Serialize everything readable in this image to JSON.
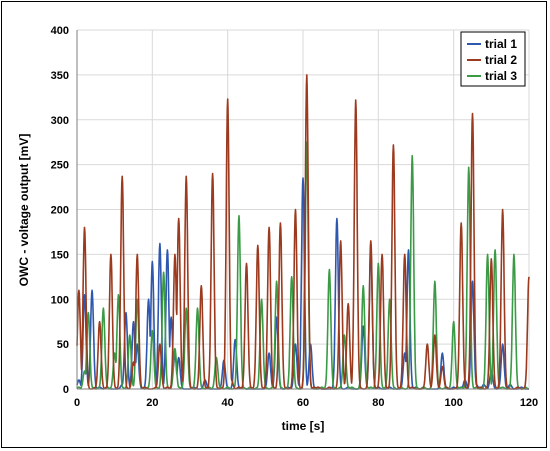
{
  "chart_data": {
    "type": "line",
    "xlabel": "time [s]",
    "ylabel": "OWC - voltage output [mV]",
    "xlim": [
      0,
      120
    ],
    "ylim": [
      0,
      400
    ],
    "xticks": [
      0,
      20,
      40,
      60,
      80,
      100,
      120
    ],
    "yticks": [
      0,
      50,
      100,
      150,
      200,
      250,
      300,
      350,
      400
    ],
    "grid": true,
    "legend": "top-right",
    "series": [
      {
        "name": "trial 1",
        "color": "#2e57b0",
        "peaks": [
          [
            0.5,
            10
          ],
          [
            2,
            105
          ],
          [
            4,
            110
          ],
          [
            6,
            2
          ],
          [
            8,
            2
          ],
          [
            12,
            5
          ],
          [
            13,
            85
          ],
          [
            15,
            75
          ],
          [
            16,
            50
          ],
          [
            18,
            2
          ],
          [
            19,
            100
          ],
          [
            20,
            142
          ],
          [
            22,
            162
          ],
          [
            24,
            155
          ],
          [
            25,
            80
          ],
          [
            26,
            38
          ],
          [
            27,
            35
          ],
          [
            31,
            2
          ],
          [
            34,
            10
          ],
          [
            39,
            32
          ],
          [
            42,
            55
          ],
          [
            44,
            2
          ],
          [
            51,
            40
          ],
          [
            53,
            80
          ],
          [
            56,
            2
          ],
          [
            58,
            50
          ],
          [
            60,
            235
          ],
          [
            62,
            50
          ],
          [
            64,
            2
          ],
          [
            69,
            190
          ],
          [
            72,
            2
          ],
          [
            76,
            70
          ],
          [
            78,
            155
          ],
          [
            80,
            2
          ],
          [
            83,
            2
          ],
          [
            87,
            40
          ],
          [
            88,
            155
          ],
          [
            90,
            2
          ],
          [
            92,
            2
          ],
          [
            97,
            40
          ],
          [
            100,
            2
          ],
          [
            102,
            2
          ],
          [
            103,
            10
          ],
          [
            105,
            120
          ],
          [
            106,
            5
          ],
          [
            108,
            5
          ],
          [
            110,
            20
          ],
          [
            113,
            50
          ],
          [
            115,
            5
          ],
          [
            118,
            2
          ]
        ]
      },
      {
        "name": "trial 2",
        "color": "#9b3a1e",
        "peaks": [
          [
            0.5,
            110
          ],
          [
            2,
            180
          ],
          [
            5,
            2
          ],
          [
            6,
            75
          ],
          [
            8,
            2
          ],
          [
            9,
            150
          ],
          [
            10,
            2
          ],
          [
            12,
            237
          ],
          [
            13,
            2
          ],
          [
            15,
            30
          ],
          [
            16,
            150
          ],
          [
            18,
            2
          ],
          [
            21,
            2
          ],
          [
            22,
            50
          ],
          [
            24,
            2
          ],
          [
            26,
            150
          ],
          [
            27,
            190
          ],
          [
            28,
            2
          ],
          [
            29,
            237
          ],
          [
            30,
            2
          ],
          [
            33,
            115
          ],
          [
            34,
            2
          ],
          [
            36,
            240
          ],
          [
            37,
            2
          ],
          [
            39,
            2
          ],
          [
            40,
            323
          ],
          [
            41,
            10
          ],
          [
            43,
            2
          ],
          [
            45,
            140
          ],
          [
            46,
            2
          ],
          [
            48,
            160
          ],
          [
            49,
            2
          ],
          [
            51,
            180
          ],
          [
            52,
            2
          ],
          [
            54,
            185
          ],
          [
            55,
            2
          ],
          [
            57,
            2
          ],
          [
            58,
            200
          ],
          [
            60,
            2
          ],
          [
            61,
            350
          ],
          [
            62,
            2
          ],
          [
            63,
            2
          ],
          [
            64,
            2
          ],
          [
            67,
            2
          ],
          [
            70,
            165
          ],
          [
            71,
            2
          ],
          [
            72,
            95
          ],
          [
            73,
            2
          ],
          [
            74,
            322
          ],
          [
            75,
            2
          ],
          [
            78,
            165
          ],
          [
            79,
            2
          ],
          [
            81,
            150
          ],
          [
            82,
            2
          ],
          [
            84,
            272
          ],
          [
            85,
            2
          ],
          [
            87,
            150
          ],
          [
            88,
            2
          ],
          [
            89,
            2
          ],
          [
            93,
            50
          ],
          [
            95,
            60
          ],
          [
            96,
            2
          ],
          [
            97,
            25
          ],
          [
            98,
            2
          ],
          [
            101,
            2
          ],
          [
            102,
            185
          ],
          [
            103,
            2
          ],
          [
            104,
            2
          ],
          [
            105,
            307
          ],
          [
            106,
            2
          ],
          [
            107,
            2
          ],
          [
            110,
            145
          ],
          [
            111,
            2
          ],
          [
            113,
            200
          ],
          [
            114,
            2
          ],
          [
            117,
            2
          ],
          [
            120,
            125
          ]
        ]
      },
      {
        "name": "trial 3",
        "color": "#3a9a45",
        "peaks": [
          [
            0.5,
            2
          ],
          [
            2,
            20
          ],
          [
            3,
            85
          ],
          [
            4,
            2
          ],
          [
            6,
            2
          ],
          [
            7,
            90
          ],
          [
            8,
            2
          ],
          [
            10,
            40
          ],
          [
            11,
            105
          ],
          [
            12,
            2
          ],
          [
            14,
            60
          ],
          [
            15,
            2
          ],
          [
            16,
            100
          ],
          [
            17,
            2
          ],
          [
            19,
            2
          ],
          [
            20,
            65
          ],
          [
            21,
            2
          ],
          [
            23,
            130
          ],
          [
            24,
            2
          ],
          [
            26,
            45
          ],
          [
            27,
            2
          ],
          [
            28,
            2
          ],
          [
            29,
            90
          ],
          [
            30,
            2
          ],
          [
            31,
            2
          ],
          [
            32,
            90
          ],
          [
            33,
            2
          ],
          [
            35,
            2
          ],
          [
            37,
            35
          ],
          [
            38,
            2
          ],
          [
            40,
            2
          ],
          [
            43,
            193
          ],
          [
            44,
            2
          ],
          [
            46,
            2
          ],
          [
            48,
            2
          ],
          [
            49,
            100
          ],
          [
            50,
            2
          ],
          [
            52,
            2
          ],
          [
            53,
            120
          ],
          [
            54,
            2
          ],
          [
            56,
            2
          ],
          [
            57,
            125
          ],
          [
            58,
            2
          ],
          [
            61,
            275
          ],
          [
            62,
            2
          ],
          [
            65,
            2
          ],
          [
            67,
            133
          ],
          [
            68,
            2
          ],
          [
            70,
            2
          ],
          [
            71,
            60
          ],
          [
            72,
            2
          ],
          [
            73,
            2
          ],
          [
            76,
            115
          ],
          [
            77,
            2
          ],
          [
            78,
            2
          ],
          [
            80,
            140
          ],
          [
            81,
            2
          ],
          [
            82,
            2
          ],
          [
            83,
            100
          ],
          [
            84,
            2
          ],
          [
            86,
            2
          ],
          [
            89,
            260
          ],
          [
            90,
            2
          ],
          [
            92,
            2
          ],
          [
            95,
            120
          ],
          [
            96,
            2
          ],
          [
            98,
            2
          ],
          [
            100,
            75
          ],
          [
            101,
            2
          ],
          [
            102,
            2
          ],
          [
            104,
            247
          ],
          [
            105,
            2
          ],
          [
            106,
            2
          ],
          [
            109,
            150
          ],
          [
            110,
            2
          ],
          [
            111,
            155
          ],
          [
            112,
            2
          ],
          [
            113,
            2
          ],
          [
            116,
            150
          ],
          [
            117,
            2
          ],
          [
            119,
            2
          ]
        ]
      }
    ]
  }
}
